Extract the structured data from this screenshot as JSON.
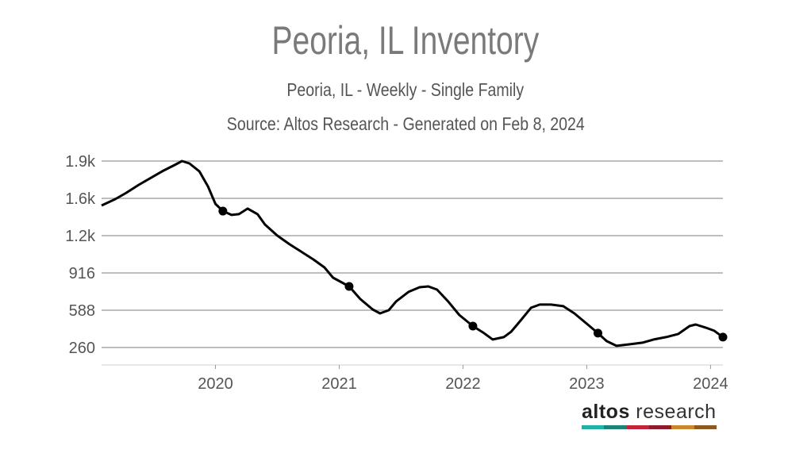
{
  "chart_data": {
    "type": "line",
    "title": "Peoria, IL Inventory",
    "subtitle": "Peoria, IL - Weekly - Single Family",
    "source": "Source: Altos Research - Generated on Feb 8, 2024",
    "xlabel": "",
    "ylabel": "",
    "xlim": [
      2019.08,
      2024.1
    ],
    "ylim": [
      106,
      1956
    ],
    "grid": true,
    "x_ticks": [
      {
        "value": 2020,
        "label": "2020"
      },
      {
        "value": 2021,
        "label": "2021"
      },
      {
        "value": 2022,
        "label": "2022"
      },
      {
        "value": 2023,
        "label": "2023"
      },
      {
        "value": 2024,
        "label": "2024"
      }
    ],
    "y_ticks": [
      {
        "value": 260,
        "label": "260"
      },
      {
        "value": 588,
        "label": "588"
      },
      {
        "value": 916,
        "label": "916"
      },
      {
        "value": 1244,
        "label": "1.2k"
      },
      {
        "value": 1572,
        "label": "1.6k"
      },
      {
        "value": 1900,
        "label": "1.9k"
      }
    ],
    "series": [
      {
        "name": "Inventory",
        "color": "#000000",
        "x": [
          2019.08,
          2019.19,
          2019.28,
          2019.38,
          2019.47,
          2019.57,
          2019.67,
          2019.73,
          2019.79,
          2019.87,
          2019.94,
          2020.0,
          2020.06,
          2020.13,
          2020.19,
          2020.26,
          2020.34,
          2020.4,
          2020.5,
          2020.6,
          2020.69,
          2020.79,
          2020.88,
          2020.95,
          2021.08,
          2021.17,
          2021.27,
          2021.33,
          2021.4,
          2021.46,
          2021.56,
          2021.65,
          2021.72,
          2021.79,
          2021.88,
          2021.97,
          2022.08,
          2022.17,
          2022.24,
          2022.33,
          2022.39,
          2022.46,
          2022.55,
          2022.62,
          2022.71,
          2022.81,
          2022.9,
          2023.0,
          2023.09,
          2023.16,
          2023.24,
          2023.35,
          2023.45,
          2023.54,
          2023.64,
          2023.74,
          2023.83,
          2023.88,
          2023.96,
          2024.03,
          2024.1
        ],
        "values": [
          1509,
          1565,
          1621,
          1691,
          1747,
          1810,
          1865,
          1900,
          1879,
          1810,
          1677,
          1523,
          1460,
          1426,
          1433,
          1482,
          1433,
          1342,
          1244,
          1167,
          1105,
          1035,
          965,
          874,
          797,
          686,
          595,
          560,
          588,
          665,
          749,
          790,
          797,
          769,
          665,
          546,
          448,
          386,
          330,
          351,
          400,
          490,
          609,
          637,
          637,
          623,
          560,
          469,
          386,
          316,
          274,
          288,
          302,
          330,
          351,
          379,
          448,
          462,
          435,
          407,
          351
        ]
      }
    ],
    "markers": [
      {
        "x": 2020.06,
        "y": 1460
      },
      {
        "x": 2021.08,
        "y": 797
      },
      {
        "x": 2022.08,
        "y": 448
      },
      {
        "x": 2023.09,
        "y": 386
      },
      {
        "x": 2024.1,
        "y": 351
      }
    ]
  },
  "logo": {
    "bold": "altos",
    "rest": " research",
    "colors": [
      "#1fb3a6",
      "#1b8477",
      "#c4243a",
      "#8e1b2b",
      "#c9862d",
      "#8a5a22"
    ]
  }
}
